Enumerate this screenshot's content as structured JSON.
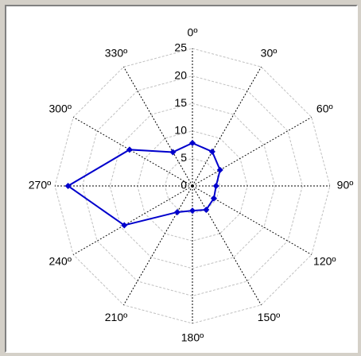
{
  "chart_data": {
    "type": "polar",
    "categories": [
      "0º",
      "30º",
      "60º",
      "90º",
      "120º",
      "150º",
      "180º",
      "210º",
      "240º",
      "270º",
      "300º",
      "330º"
    ],
    "series": [
      {
        "color": "#0000cc",
        "values": [
          7.8,
          7.2,
          5.8,
          4.3,
          4.5,
          5.0,
          4.5,
          5.5,
          14.3,
          22.6,
          13.2,
          7.1
        ]
      }
    ],
    "ylim": [
      0,
      25
    ],
    "yticks": [
      0,
      5,
      10,
      15,
      20,
      25
    ],
    "grid": true
  }
}
